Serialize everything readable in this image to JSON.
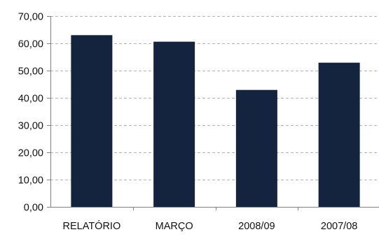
{
  "chart_data": {
    "type": "bar",
    "categories": [
      "RELATÓRIO",
      "MARÇO",
      "2008/09",
      "2007/08"
    ],
    "values": [
      63.0,
      60.6,
      42.9,
      52.9
    ],
    "title": "",
    "xlabel": "",
    "ylabel": "",
    "ylim": [
      0,
      70
    ],
    "yticks": [
      "0,00",
      "10,00",
      "20,00",
      "30,00",
      "40,00",
      "50,00",
      "60,00",
      "70,00"
    ],
    "grid": true,
    "legend": "none",
    "colors": {
      "bar": "#14243e",
      "grid": "#b4b4b4",
      "axis": "#7f7f7f"
    }
  }
}
